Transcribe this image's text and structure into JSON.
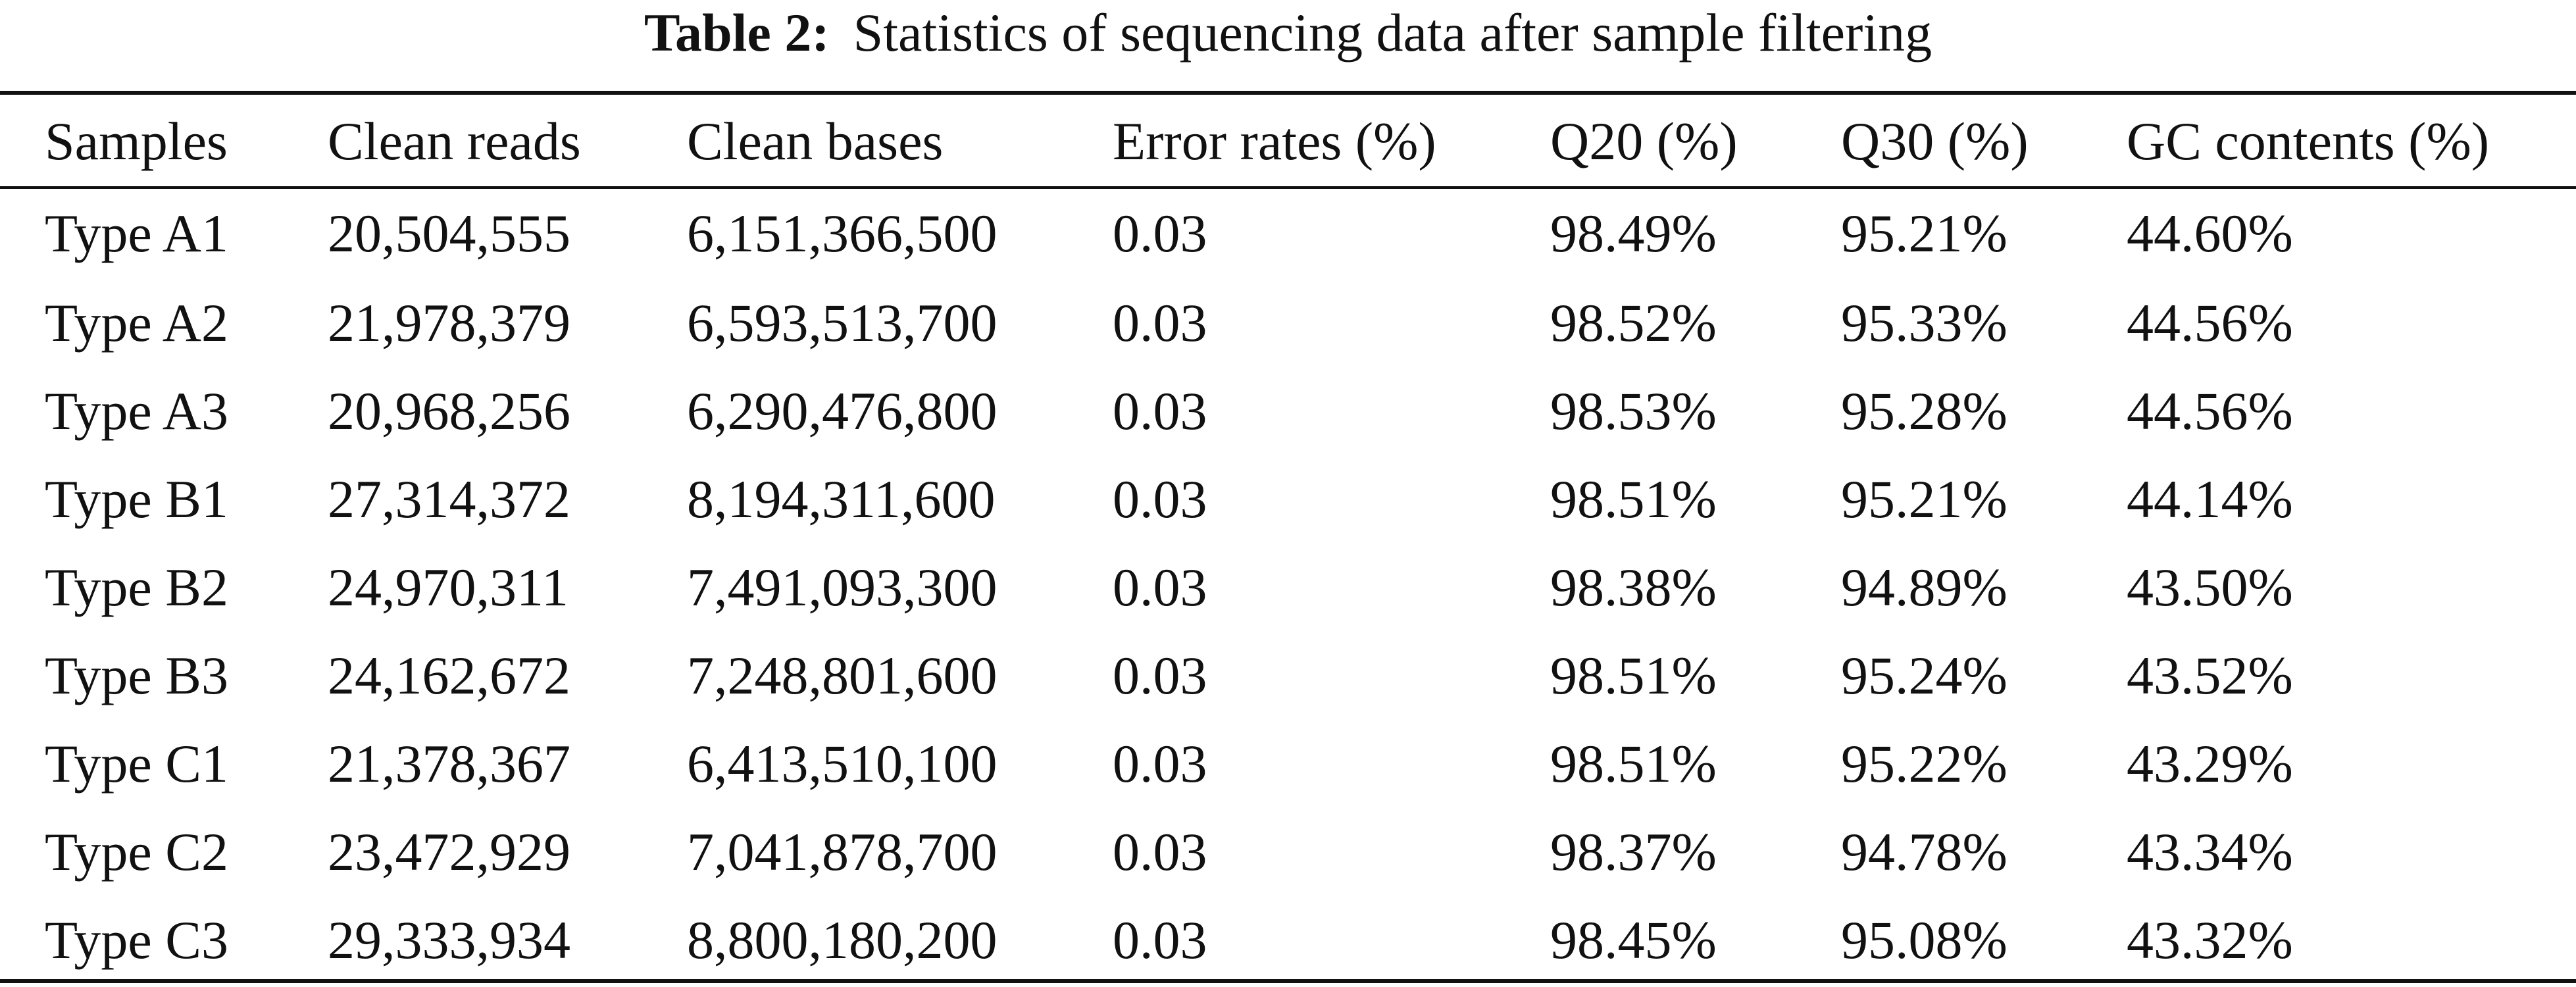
{
  "caption": {
    "label": "Table 2:",
    "text": "Statistics of sequencing data after sample filtering"
  },
  "table": {
    "headers": [
      "Samples",
      "Clean reads",
      "Clean bases",
      "Error rates (%)",
      "Q20 (%)",
      "Q30 (%)",
      "GC contents (%)"
    ],
    "rows": [
      [
        "Type A1",
        "20,504,555",
        "6,151,366,500",
        "0.03",
        "98.49%",
        "95.21%",
        "44.60%"
      ],
      [
        "Type A2",
        "21,978,379",
        "6,593,513,700",
        "0.03",
        "98.52%",
        "95.33%",
        "44.56%"
      ],
      [
        "Type A3",
        "20,968,256",
        "6,290,476,800",
        "0.03",
        "98.53%",
        "95.28%",
        "44.56%"
      ],
      [
        "Type B1",
        "27,314,372",
        "8,194,311,600",
        "0.03",
        "98.51%",
        "95.21%",
        "44.14%"
      ],
      [
        "Type B2",
        "24,970,311",
        "7,491,093,300",
        "0.03",
        "98.38%",
        "94.89%",
        "43.50%"
      ],
      [
        "Type B3",
        "24,162,672",
        "7,248,801,600",
        "0.03",
        "98.51%",
        "95.24%",
        "43.52%"
      ],
      [
        "Type C1",
        "21,378,367",
        "6,413,510,100",
        "0.03",
        "98.51%",
        "95.22%",
        "43.29%"
      ],
      [
        "Type C2",
        "23,472,929",
        "7,041,878,700",
        "0.03",
        "98.37%",
        "94.78%",
        "43.34%"
      ],
      [
        "Type C3",
        "29,333,934",
        "8,800,180,200",
        "0.03",
        "98.45%",
        "95.08%",
        "43.32%"
      ]
    ]
  }
}
